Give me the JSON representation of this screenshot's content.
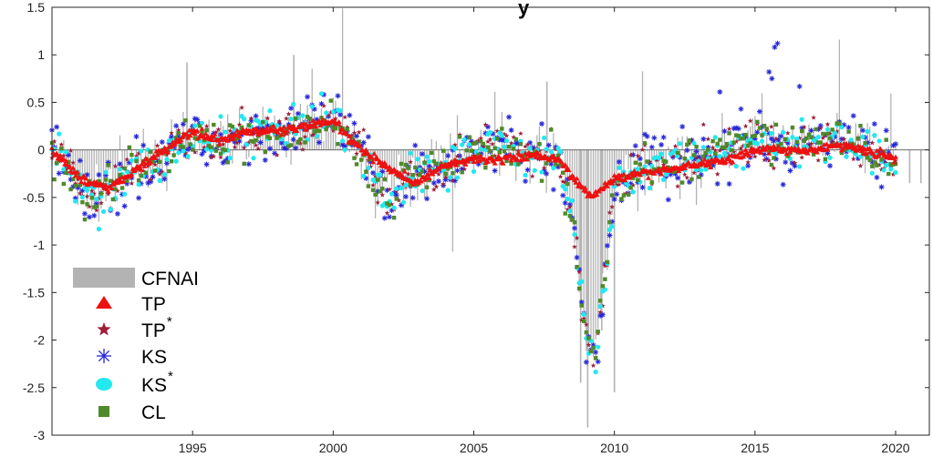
{
  "chart_data": {
    "type": "bar+scatter",
    "title": "",
    "xlabel": "",
    "ylabel": "",
    "xlim": [
      1990.0,
      2021.2
    ],
    "ylim": [
      -3,
      1.5
    ],
    "xticks": [
      1995,
      2000,
      2005,
      2010,
      2015,
      2020
    ],
    "xtick_labels": [
      "1995",
      "2000",
      "2005",
      "2010",
      "2015",
      "2020"
    ],
    "yticks": [
      1.5,
      1,
      0.5,
      0,
      -0.5,
      -1,
      -1.5,
      -2,
      -2.5,
      -3
    ],
    "ytick_labels": [
      "1.5",
      "1",
      "0.5",
      "0",
      "-0.5",
      "-1",
      "-1.5",
      "-2",
      "-2.5",
      "-3"
    ],
    "grid": false,
    "legend_position": "lower-left",
    "anchors": {
      "x": [
        1990.0,
        1990.5,
        1991.0,
        1991.6,
        1992.0,
        1993.0,
        1994.0,
        1995.0,
        1996.0,
        1997.0,
        1998.0,
        1999.0,
        2000.0,
        2000.8,
        2001.5,
        2002.0,
        2003.0,
        2004.0,
        2005.0,
        2006.0,
        2007.0,
        2008.0,
        2008.5,
        2009.0,
        2009.3,
        2009.6,
        2010.0,
        2011.0,
        2012.0,
        2013.0,
        2014.0,
        2015.0,
        2016.0,
        2017.0,
        2018.0,
        2019.0,
        2020.0
      ],
      "y": [
        0.0,
        -0.15,
        -0.4,
        -0.6,
        -0.35,
        -0.2,
        -0.1,
        0.15,
        0.05,
        0.2,
        0.15,
        0.25,
        0.3,
        0.05,
        -0.35,
        -0.5,
        -0.2,
        -0.15,
        0.0,
        0.05,
        -0.05,
        -0.1,
        -0.7,
        -2.0,
        -2.2,
        -1.5,
        -0.4,
        -0.2,
        -0.15,
        -0.1,
        0.0,
        0.1,
        0.05,
        0.05,
        0.15,
        0.0,
        -0.15
      ]
    },
    "tp_anchors": {
      "x": [
        1990.0,
        1991.0,
        1992.0,
        1993.0,
        1994.0,
        1995.0,
        1996.0,
        1997.0,
        1998.0,
        1999.0,
        2000.0,
        2001.0,
        2002.0,
        2003.0,
        2004.0,
        2005.0,
        2006.0,
        2007.0,
        2008.0,
        2008.7,
        2009.2,
        2009.6,
        2010.0,
        2011.0,
        2012.0,
        2013.0,
        2014.0,
        2015.0,
        2016.0,
        2017.0,
        2018.0,
        2019.0,
        2020.0
      ],
      "y": [
        0.0,
        -0.3,
        -0.4,
        -0.2,
        0.0,
        0.2,
        0.1,
        0.2,
        0.2,
        0.25,
        0.3,
        0.0,
        -0.2,
        -0.35,
        -0.15,
        -0.1,
        -0.1,
        -0.05,
        -0.1,
        -0.35,
        -0.5,
        -0.4,
        -0.3,
        -0.25,
        -0.2,
        -0.15,
        -0.1,
        0.0,
        0.0,
        0.0,
        0.05,
        0.0,
        -0.1
      ]
    },
    "series": [
      {
        "name": "CFNAI",
        "kind": "bar",
        "color": "#b3b3b3"
      },
      {
        "name": "TP",
        "kind": "triangle",
        "color": "#ee1111"
      },
      {
        "name": "TP*",
        "kind": "star",
        "color": "#9e1f3a"
      },
      {
        "name": "KS",
        "kind": "asterisk",
        "color": "#2424d8"
      },
      {
        "name": "KS*",
        "kind": "circle",
        "color": "#22e8f0"
      },
      {
        "name": "CL",
        "kind": "square",
        "color": "#4f8a2a"
      }
    ],
    "legend_entries": [
      "CFNAI",
      "TP",
      "TP",
      "KS",
      "KS",
      "CL"
    ],
    "legend_superscripts": [
      "",
      "",
      "*",
      "",
      "*",
      ""
    ],
    "title_fragment": "y"
  }
}
